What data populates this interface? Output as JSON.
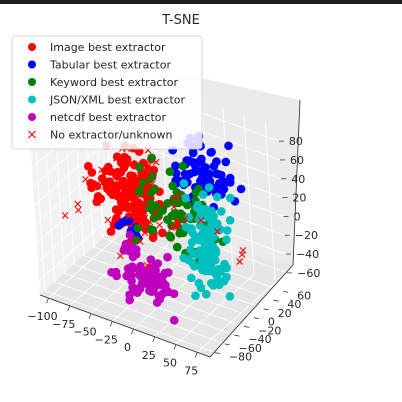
{
  "chart_data": {
    "type": "scatter3d",
    "title": "T-SNE",
    "xlabel": "",
    "ylabel": "",
    "zlabel": "",
    "xlim": [
      -110,
      90
    ],
    "ylim": [
      -90,
      70
    ],
    "zlim": [
      -75,
      95
    ],
    "x_ticks": [
      -100,
      -75,
      -50,
      -25,
      0,
      25,
      50,
      75
    ],
    "y_ticks": [
      -80,
      -60,
      -40,
      -20,
      0,
      20,
      40,
      60
    ],
    "z_ticks": [
      -60,
      -40,
      -20,
      0,
      20,
      40,
      60,
      80
    ],
    "x_tick_labels": [
      "−100",
      "−75",
      "−50",
      "−25",
      "0",
      "25",
      "50",
      "75"
    ],
    "y_tick_labels": [
      "−80",
      "−60",
      "−40",
      "−20",
      "0",
      "20",
      "40",
      "60"
    ],
    "z_tick_labels": [
      "−60",
      "−40",
      "−20",
      "0",
      "20",
      "40",
      "60",
      "80"
    ],
    "legend_position": "top-left",
    "series": [
      {
        "name": "Image best extractor",
        "color": "#ff0000",
        "marker": "circle",
        "clusters": [
          {
            "center": [
              -55,
              10,
              5
            ],
            "spread": [
              20,
              15,
              18
            ],
            "count": 150
          }
        ]
      },
      {
        "name": "Tabular best extractor",
        "color": "#0000ff",
        "marker": "circle",
        "clusters": [
          {
            "center": [
              15,
              35,
              35
            ],
            "spread": [
              20,
              12,
              15
            ],
            "count": 75
          },
          {
            "center": [
              -60,
              0,
              -30
            ],
            "spread": [
              10,
              5,
              6
            ],
            "count": 8
          }
        ]
      },
      {
        "name": "Keyword best extractor",
        "color": "#008000",
        "marker": "circle",
        "clusters": [
          {
            "center": [
              -5,
              10,
              5
            ],
            "spread": [
              25,
              15,
              20
            ],
            "count": 65
          }
        ]
      },
      {
        "name": "JSON/XML best extractor",
        "color": "#00bfbf",
        "marker": "circle",
        "clusters": [
          {
            "center": [
              55,
              -25,
              5
            ],
            "spread": [
              10,
              15,
              25
            ],
            "count": 120
          }
        ]
      },
      {
        "name": "netcdf best extractor",
        "color": "#bf00bf",
        "marker": "circle",
        "clusters": [
          {
            "center": [
              -15,
              -30,
              -55
            ],
            "spread": [
              18,
              12,
              8
            ],
            "count": 80
          },
          {
            "center": [
              -45,
              -10,
              -40
            ],
            "spread": [
              8,
              5,
              5
            ],
            "count": 12
          }
        ]
      },
      {
        "name": "No extractor/unknown",
        "color": "#ff0000",
        "marker": "x",
        "clusters": [
          {
            "center": [
              -40,
              10,
              0
            ],
            "spread": [
              35,
              20,
              25
            ],
            "count": 50
          },
          {
            "center": [
              85,
              -5,
              -10
            ],
            "spread": [
              3,
              3,
              3
            ],
            "count": 3
          }
        ]
      }
    ]
  }
}
